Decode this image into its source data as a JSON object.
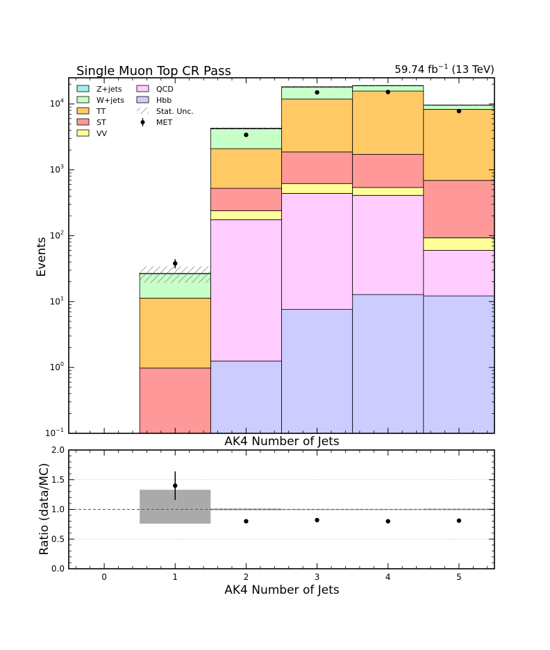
{
  "header": {
    "title": "Single Muon Top CR Pass",
    "lumi_value": "59.74 fb",
    "lumi_exponent": "−1",
    "energy": " (13 TeV)"
  },
  "legend": {
    "col1": [
      {
        "label": "Z+jets",
        "color": "#9ef0f0",
        "kind": "box"
      },
      {
        "label": "W+jets",
        "color": "#c8ffc8",
        "kind": "box"
      },
      {
        "label": "TT",
        "color": "#ffc966",
        "kind": "box"
      },
      {
        "label": "ST",
        "color": "#ff9999",
        "kind": "box"
      },
      {
        "label": "VV",
        "color": "#ffff99",
        "kind": "box"
      }
    ],
    "col2": [
      {
        "label": "QCD",
        "color": "#ffccff",
        "kind": "box"
      },
      {
        "label": "Hbb",
        "color": "#ccccff",
        "kind": "box"
      },
      {
        "label": "Stat. Unc.",
        "color": "#888888",
        "kind": "hatch"
      },
      {
        "label": "MET",
        "color": "#000000",
        "kind": "point"
      }
    ]
  },
  "chart_data": [
    {
      "type": "bar",
      "stacked": true,
      "yscale": "log",
      "xlabel": "AK4 Number of Jets",
      "ylabel": "Events",
      "categories": [
        0,
        1,
        2,
        3,
        4,
        5
      ],
      "xlim": [
        -0.5,
        5.5
      ],
      "ylim": [
        0.1,
        25000
      ],
      "yticks": [
        {
          "value": 0.1,
          "base": "10",
          "exp": "−1"
        },
        {
          "value": 1,
          "base": "10",
          "exp": "0"
        },
        {
          "value": 10,
          "base": "10",
          "exp": "1"
        },
        {
          "value": 100,
          "base": "10",
          "exp": "2"
        },
        {
          "value": 1000,
          "base": "10",
          "exp": "3"
        },
        {
          "value": 10000,
          "base": "10",
          "exp": "4"
        }
      ],
      "series": [
        {
          "name": "Hbb",
          "color": "#ccccff",
          "values": [
            0,
            0,
            1.25,
            7.6,
            12.8,
            12.2
          ]
        },
        {
          "name": "QCD",
          "color": "#ffccff",
          "values": [
            0,
            0,
            173.75,
            432.4,
            397.2,
            47.8
          ]
        },
        {
          "name": "VV",
          "color": "#ffff99",
          "values": [
            0,
            0,
            65,
            180,
            130,
            33
          ]
        },
        {
          "name": "ST",
          "color": "#ff9999",
          "values": [
            0,
            0.98,
            285,
            1250,
            1180,
            598
          ]
        },
        {
          "name": "TT",
          "color": "#ffc966",
          "values": [
            0,
            10.32,
            1575,
            10000,
            14000,
            7600
          ]
        },
        {
          "name": "W+jets",
          "color": "#c8ffc8",
          "values": [
            0,
            15.2,
            2100,
            6200,
            3200,
            1300
          ]
        },
        {
          "name": "Z+jets",
          "color": "#9ef0f0",
          "values": [
            0,
            0.3,
            80,
            200,
            150,
            60
          ]
        }
      ],
      "stat_unc": [
        0,
        0.28,
        0.03,
        0.015,
        0.015,
        0.02
      ],
      "data": {
        "name": "MET",
        "x": [
          1,
          2,
          3,
          4,
          5
        ],
        "y": [
          38,
          3400,
          15000,
          15200,
          7800
        ],
        "yerr": [
          6,
          58,
          122,
          123,
          88
        ]
      }
    },
    {
      "type": "scatter",
      "xlabel": "AK4 Number of Jets",
      "ylabel": "Ratio (data/MC)",
      "xlim": [
        -0.5,
        5.5
      ],
      "ylim": [
        0.0,
        2.0
      ],
      "yticks": [
        "0.0",
        "0.5",
        "1.0",
        "1.5",
        "2.0"
      ],
      "xticks": [
        "0",
        "1",
        "2",
        "3",
        "4",
        "5"
      ],
      "reference_line": 1.0,
      "unc_band": [
        {
          "x": 1,
          "low": 0.76,
          "high": 1.33
        },
        {
          "x": 2,
          "low": 0.985,
          "high": 1.015
        },
        {
          "x": 3,
          "low": 0.993,
          "high": 1.007
        },
        {
          "x": 4,
          "low": 0.993,
          "high": 1.007
        },
        {
          "x": 5,
          "low": 0.988,
          "high": 1.012
        }
      ],
      "points": [
        {
          "x": 1,
          "y": 1.4,
          "yerr": 0.24
        },
        {
          "x": 2,
          "y": 0.8,
          "yerr": 0.014
        },
        {
          "x": 3,
          "y": 0.82,
          "yerr": 0.007
        },
        {
          "x": 4,
          "y": 0.8,
          "yerr": 0.007
        },
        {
          "x": 5,
          "y": 0.81,
          "yerr": 0.01
        }
      ],
      "grid": "horizontal dotted"
    }
  ]
}
